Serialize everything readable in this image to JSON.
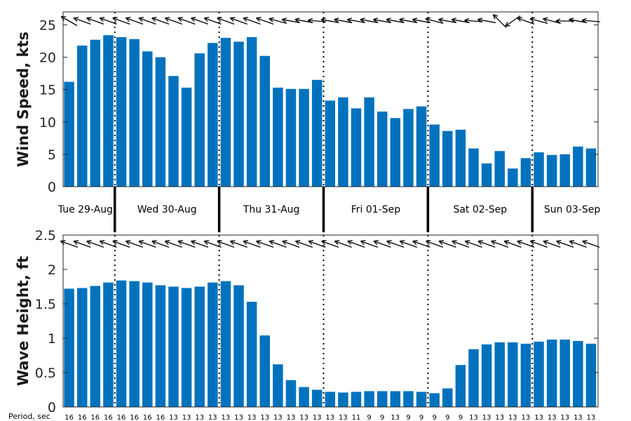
{
  "days": [
    "Tue 29-Aug",
    "Wed 30-Aug",
    "Thu 31-Aug",
    "Fri 01-Sep",
    "Sat 02-Sep",
    "Sun 03-Sep"
  ],
  "period_title": "Period, sec",
  "colors": {
    "bar": "#0072BD",
    "axis": "#262626",
    "text": "#000000"
  },
  "chart_data": [
    {
      "type": "bar",
      "ylabel": "Wind Speed, kts",
      "ylim": [
        0,
        27
      ],
      "yticks": [
        0,
        5,
        10,
        15,
        20,
        25
      ],
      "xlabel": "",
      "grid": false,
      "day_separators": "dotted",
      "values": [
        16.2,
        21.8,
        22.7,
        23.4,
        23.1,
        22.8,
        20.9,
        20.0,
        17.1,
        15.3,
        20.6,
        22.2,
        23.0,
        22.4,
        23.1,
        20.2,
        15.3,
        15.1,
        15.1,
        16.5,
        13.3,
        13.8,
        12.1,
        13.8,
        11.6,
        10.6,
        12.0,
        12.4,
        9.6,
        8.6,
        8.8,
        5.9,
        3.6,
        5.5,
        2.8,
        4.4,
        5.3,
        4.9,
        5.0,
        6.2,
        5.9
      ],
      "direction_arrows_deg": [
        -150,
        -160,
        -160,
        -160,
        -160,
        -160,
        -160,
        -160,
        -160,
        -160,
        -160,
        -160,
        -160,
        -160,
        -160,
        -160,
        -165,
        -170,
        -170,
        -175,
        -170,
        -170,
        -170,
        -170,
        -170,
        -170,
        -170,
        -170,
        -165,
        -170,
        -170,
        -175,
        -170,
        -135,
        145,
        -160,
        -165,
        -165,
        -180,
        -170,
        -175
      ]
    },
    {
      "type": "bar",
      "ylabel": "Wave Height, ft",
      "ylim": [
        0,
        2.5
      ],
      "yticks": [
        0,
        0.5,
        1,
        1.5,
        2,
        2.5
      ],
      "xlabel": "",
      "grid": false,
      "day_separators": "dotted",
      "values": [
        1.72,
        1.73,
        1.76,
        1.81,
        1.84,
        1.83,
        1.81,
        1.77,
        1.75,
        1.73,
        1.75,
        1.81,
        1.83,
        1.77,
        1.53,
        1.04,
        0.62,
        0.39,
        0.29,
        0.25,
        0.22,
        0.21,
        0.22,
        0.23,
        0.23,
        0.23,
        0.23,
        0.22,
        0.2,
        0.27,
        0.61,
        0.84,
        0.91,
        0.94,
        0.94,
        0.92,
        0.95,
        0.98,
        0.98,
        0.96,
        0.92
      ],
      "direction_arrows_deg": [
        -160,
        -160,
        -160,
        -160,
        -160,
        -160,
        -160,
        -160,
        -160,
        -160,
        -160,
        -160,
        -160,
        -160,
        -160,
        -160,
        -160,
        -160,
        -160,
        -160,
        -160,
        -160,
        -160,
        -160,
        -160,
        -160,
        -160,
        -160,
        -160,
        -160,
        -160,
        -160,
        -160,
        -160,
        -160,
        -160,
        -160,
        -160,
        -160,
        -160,
        -160
      ],
      "period_sec": [
        "16",
        "16",
        "16",
        "16",
        "16",
        "16",
        "16",
        "16",
        "13",
        "13",
        "13",
        "13",
        "13",
        "13",
        "13",
        "13",
        "13",
        "13",
        "13",
        "13",
        "13",
        "13",
        "11",
        "9",
        "9",
        "13",
        "9",
        "9",
        "9",
        "9",
        "9",
        "13",
        "13",
        "13",
        "13",
        "13",
        "13",
        "13",
        "13",
        "13",
        "13"
      ]
    }
  ]
}
